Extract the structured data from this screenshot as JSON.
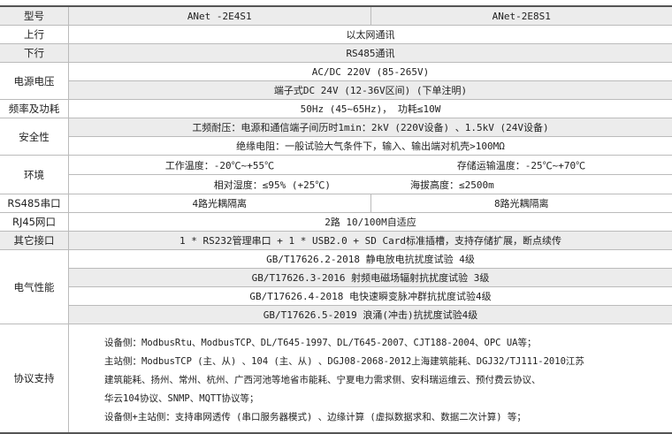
{
  "header": {
    "label": "型号",
    "models": [
      "ANet -2E4S1",
      "ANet-2E8S1"
    ]
  },
  "uplink": {
    "label": "上行",
    "value": "以太网通讯"
  },
  "downlink": {
    "label": "下行",
    "value": "RS485通讯"
  },
  "power": {
    "label": "电源电压",
    "values": [
      "AC/DC 220V (85-265V)",
      "端子式DC 24V (12-36V区间) (下单注明)"
    ]
  },
  "freq": {
    "label": "频率及功耗",
    "value": "50Hz (45~65Hz)，  功耗≤10W"
  },
  "safety": {
    "label": "安全性",
    "values": [
      "工频耐压：电源和通信端子间历时1min：2kV (220V设备) 、1.5kV (24V设备)",
      "绝缘电阻：一般试验大气条件下，输入、输出端对机壳>100MΩ"
    ]
  },
  "env": {
    "label": "环境",
    "row1": [
      "工作温度：-20℃~+55℃",
      "存储运输温度：-25℃~+70℃"
    ],
    "row2": [
      "相对湿度：≤95% (+25℃)",
      "海拔高度：≤2500m"
    ]
  },
  "rs485": {
    "label": "RS485串口",
    "values": [
      "4路光耦隔离",
      "8路光耦隔离"
    ]
  },
  "rj45": {
    "label": "RJ45网口",
    "value": "2路 10/100M自适应"
  },
  "other": {
    "label": "其它接口",
    "value": "1 * RS232管理串口 + 1 * USB2.0 + SD Card标准插槽，支持存储扩展，断点续传"
  },
  "emc": {
    "label": "电气性能",
    "values": [
      "GB/T17626.2-2018 静电放电抗扰度试验 4级",
      "GB/T17626.3-2016 射频电磁场辐射抗扰度试验 3级",
      "GB/T17626.4-2018 电快速瞬变脉冲群抗扰度试验4级",
      "GB/T17626.5-2019 浪涌(冲击)抗扰度试验4级"
    ]
  },
  "protocol": {
    "label": "协议支持",
    "lines": [
      "设备侧：ModbusRtu、ModbusTCP、DL/T645-1997、DL/T645-2007、CJT188-2004、OPC UA等；",
      "主站侧：ModbusTCP (主、从) 、104 (主、从) 、DGJ08-2068-2012上海建筑能耗、DGJ32/TJ111-2010江苏",
      "建筑能耗、扬州、常州、杭州、广西河池等地省市能耗、宁夏电力需求侧、安科瑞运维云、预付费云协议、",
      "华云104协议、SNMP、MQTT协议等；",
      "设备侧+主站侧：支持串网透传 (串口服务器模式) 、边缘计算 (虚拟数据求和、数据二次计算) 等；"
    ]
  }
}
